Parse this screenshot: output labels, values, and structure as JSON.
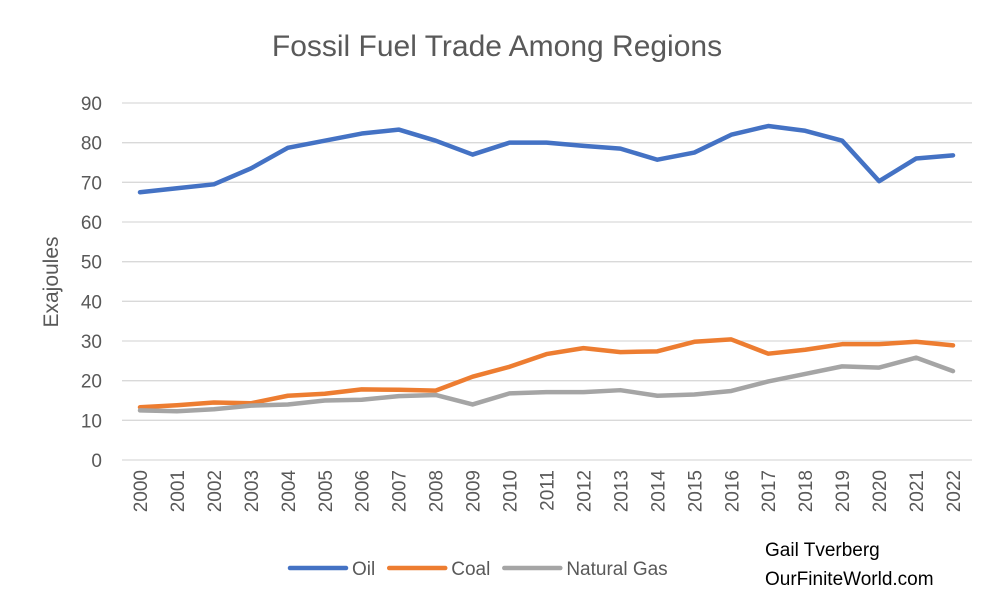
{
  "chart_data": {
    "type": "line",
    "title": "Fossil Fuel Trade Among Regions",
    "xlabel": "",
    "ylabel": "Exajoules",
    "ylim": [
      0,
      90
    ],
    "yticks": [
      0,
      10,
      20,
      30,
      40,
      50,
      60,
      70,
      80,
      90
    ],
    "grid": true,
    "legend_position": "bottom",
    "x": [
      "2000",
      "2001",
      "2002",
      "2003",
      "2004",
      "2005",
      "2006",
      "2007",
      "2008",
      "2009",
      "2010",
      "2011",
      "2012",
      "2013",
      "2014",
      "2015",
      "2016",
      "2017",
      "2018",
      "2019",
      "2020",
      "2021",
      "2022"
    ],
    "series": [
      {
        "name": "Oil",
        "color": "#4472C4",
        "values": [
          67.5,
          68.5,
          69.5,
          73.5,
          78.7,
          80.5,
          82.3,
          83.3,
          80.5,
          77.0,
          80.0,
          80.0,
          79.2,
          78.5,
          75.7,
          77.5,
          82.0,
          84.2,
          83.0,
          80.5,
          70.3,
          76.0,
          76.8
        ]
      },
      {
        "name": "Coal",
        "color": "#ED7D31",
        "values": [
          13.3,
          13.8,
          14.5,
          14.3,
          16.2,
          16.7,
          17.8,
          17.7,
          17.5,
          21.0,
          23.5,
          26.7,
          28.2,
          27.2,
          27.4,
          29.8,
          30.4,
          26.8,
          27.8,
          29.2,
          29.2,
          29.8,
          28.9
        ]
      },
      {
        "name": "Natural Gas",
        "color": "#A5A5A5",
        "values": [
          12.5,
          12.3,
          12.8,
          13.7,
          14.0,
          15.0,
          15.2,
          16.1,
          16.4,
          14.0,
          16.8,
          17.1,
          17.1,
          17.6,
          16.2,
          16.5,
          17.4,
          19.8,
          21.7,
          23.6,
          23.3,
          25.8,
          22.4
        ]
      }
    ]
  },
  "credit": {
    "author": "Gail Tverberg",
    "site": "OurFiniteWorld.com"
  }
}
